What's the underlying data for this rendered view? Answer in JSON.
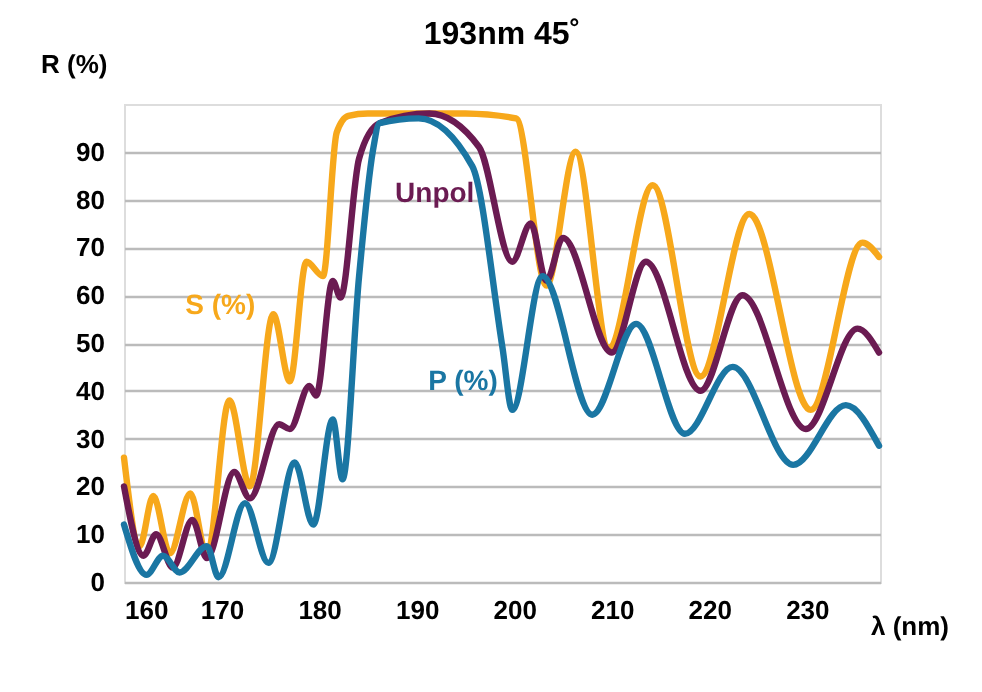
{
  "chart_data": {
    "type": "line",
    "title": "193nm 45˚",
    "xlabel": "λ (nm)",
    "ylabel": "R (%)",
    "xlim": [
      160,
      237.5
    ],
    "ylim": [
      0,
      100
    ],
    "xticks": [
      160,
      170,
      180,
      190,
      200,
      210,
      220,
      230
    ],
    "yticks": [
      0,
      10,
      20,
      30,
      40,
      50,
      60,
      70,
      80,
      90
    ],
    "grid": "y",
    "legend": false,
    "series": [
      {
        "name": "S (%)",
        "color": "#f7a81b",
        "x": [
          160,
          161.6,
          163,
          164.7,
          166.8,
          168.5,
          170.8,
          172.9,
          175.3,
          177,
          178.7,
          180.4,
          181.8,
          183,
          185,
          190,
          195,
          200.2,
          203.3,
          206.3,
          209.7,
          214.2,
          219.1,
          224.1,
          230.4,
          235.7,
          237.4
        ],
        "values": [
          26,
          7.5,
          18,
          6,
          18.5,
          5.5,
          38,
          20,
          56,
          42,
          67,
          64,
          94,
          97.5,
          98,
          98,
          98,
          97,
          62,
          90,
          49,
          83,
          43,
          77,
          36,
          71,
          68
        ]
      },
      {
        "name": "Unpol",
        "color": "#6b1b52",
        "x": [
          160,
          162,
          163.3,
          165,
          167,
          168.5,
          171.3,
          172.9,
          175.9,
          177,
          179,
          179.7,
          181.4,
          182.2,
          184.1,
          186.2,
          191.3,
          196.4,
          199.8,
          201.7,
          203.3,
          205,
          210,
          213.5,
          219.1,
          223.4,
          229.9,
          235.2,
          237.4
        ],
        "values": [
          20,
          5.5,
          10,
          3,
          13,
          5,
          23,
          17.5,
          33,
          32,
          41,
          39,
          63,
          59.5,
          88.6,
          96,
          98,
          91,
          67,
          75,
          63,
          72,
          48,
          67,
          40,
          60,
          32,
          53,
          48
        ]
      },
      {
        "name": "P (%)",
        "color": "#1a76a3",
        "x": [
          160,
          162.3,
          164,
          165.7,
          168.5,
          169.7,
          172.4,
          174.8,
          177.5,
          179.4,
          181.4,
          182.4,
          184.1,
          185.5,
          186.2,
          190.2,
          195.7,
          198.8,
          199.8,
          202.9,
          208,
          212.5,
          217.5,
          222.4,
          228.6,
          234,
          237.4
        ],
        "values": [
          12,
          1.5,
          5.5,
          2,
          7.5,
          1,
          16.5,
          4,
          25,
          12,
          34,
          21.5,
          64,
          90,
          96,
          97,
          87,
          49,
          36,
          64,
          35,
          54,
          31,
          45,
          24.5,
          37,
          28.5
        ]
      }
    ]
  }
}
